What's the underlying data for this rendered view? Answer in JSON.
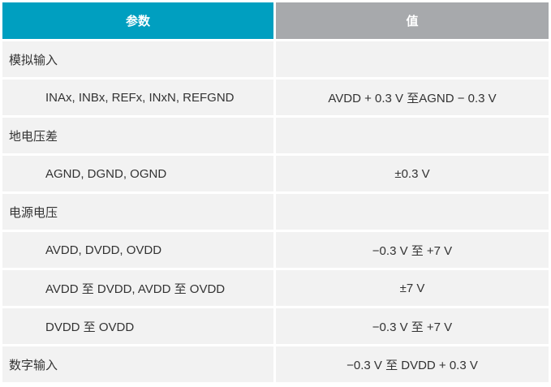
{
  "table": {
    "header": [
      "参数",
      "值"
    ],
    "groups": [
      {
        "label": "模拟输入",
        "rows": [
          [
            "INAx, INBx, REFx, INxN, REFGND",
            "AVDD + 0.3 V 至AGND − 0.3 V"
          ]
        ]
      },
      {
        "label": "地电压差",
        "rows": [
          [
            "AGND, DGND, OGND",
            "±0.3 V"
          ]
        ]
      },
      {
        "label": "电源电压",
        "rows": [
          [
            "AVDD, DVDD, OVDD",
            "−0.3 V 至 +7 V"
          ],
          [
            "AVDD 至 DVDD, AVDD 至 OVDD",
            "±7 V"
          ],
          [
            "DVDD 至 OVDD",
            "−0.3 V 至 +7 V"
          ]
        ]
      },
      {
        "label": "数字输入",
        "value": "−0.3 V 至 DVDD + 0.3 V"
      }
    ]
  }
}
